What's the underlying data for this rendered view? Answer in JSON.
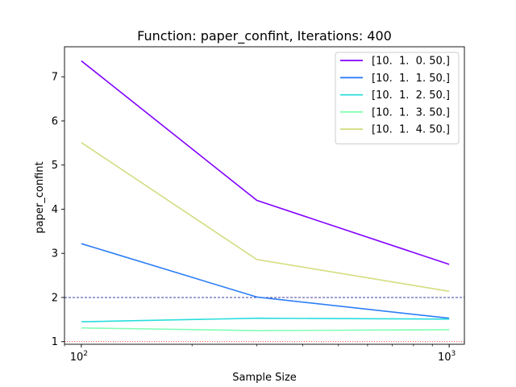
{
  "chart_data": {
    "type": "line",
    "title": "Function: paper_confint, Iterations: 400",
    "xlabel": "Sample Size",
    "ylabel": "paper_confint",
    "x_scale": "log",
    "xlim": [
      90,
      1100
    ],
    "ylim": [
      0.94,
      7.68
    ],
    "x_ticks": [
      {
        "value": 100,
        "label": "10",
        "exp": "2"
      },
      {
        "value": 1000,
        "label": "10",
        "exp": "3"
      }
    ],
    "y_ticks": [
      1,
      2,
      3,
      4,
      5,
      6,
      7
    ],
    "x": [
      100,
      300,
      1000
    ],
    "series": [
      {
        "name": "[10.  1.  0. 50.]",
        "color": "#8000ff",
        "values": [
          7.36,
          4.2,
          2.75
        ]
      },
      {
        "name": "[10.  1.  1. 50.]",
        "color": "#2c7ef7",
        "values": [
          3.22,
          2.01,
          1.53
        ]
      },
      {
        "name": "[10.  1.  2. 50.]",
        "color": "#2adddd",
        "values": [
          1.45,
          1.53,
          1.51
        ]
      },
      {
        "name": "[10.  1.  3. 50.]",
        "color": "#80ffb4",
        "values": [
          1.31,
          1.25,
          1.27
        ]
      },
      {
        "name": "[10.  1.  4. 50.]",
        "color": "#d4dd80",
        "values": [
          5.51,
          2.86,
          2.14
        ]
      }
    ],
    "reference_lines": [
      {
        "y": 2.0,
        "color": "#00008b",
        "style": "dashed"
      },
      {
        "y": 1.0,
        "color": "#ff0000",
        "style": "dotted"
      }
    ],
    "legend_position": "top-right",
    "grid": false
  }
}
